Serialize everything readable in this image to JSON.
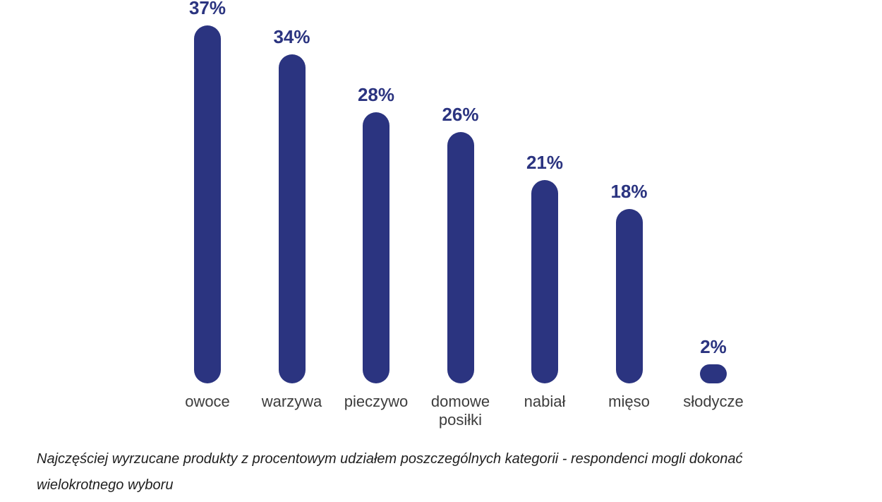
{
  "chart_data": {
    "type": "bar",
    "categories": [
      "owoce",
      "warzywa",
      "pieczywo",
      "domowe posiłki",
      "nabiał",
      "mięso",
      "słodycze"
    ],
    "values": [
      37,
      34,
      28,
      26,
      21,
      18,
      2
    ],
    "value_labels": [
      "37%",
      "34%",
      "28%",
      "26%",
      "21%",
      "18%",
      "2%"
    ],
    "title": "",
    "xlabel": "",
    "ylabel": "",
    "ylim": [
      0,
      40
    ],
    "grid": false,
    "legend": "none",
    "unit": "%",
    "bar_style": "rounded-pill",
    "orientation": "vertical"
  },
  "caption": {
    "line1": "Najczęściej wyrzucane produkty z procentowym udziałem poszczególnych kategorii - respondenci mogli dokonać",
    "line2": "wielokrotnego wyboru"
  },
  "colors": {
    "bar": "#2b3480",
    "value_label": "#2b3480",
    "category_label": "#3d3d3d",
    "caption": "#1f1f1f",
    "background": "#ffffff"
  }
}
